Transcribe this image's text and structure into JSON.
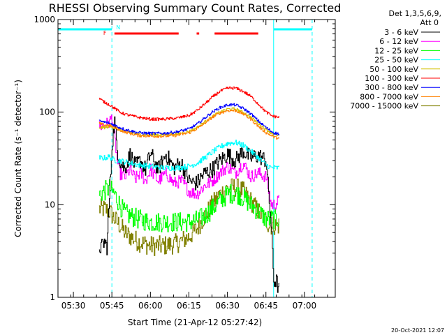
{
  "chart_data": {
    "type": "line",
    "title": "RHESSI Observing Summary Count Rates, Corrected",
    "xlabel": "Start Time (21-Apr-12 05:27:42)",
    "ylabel": "Corrected Count Rate (s⁻¹ detector⁻¹)",
    "yscale": "log",
    "xlim": [
      "05:24",
      "07:12"
    ],
    "ylim": [
      1,
      1000
    ],
    "x_ticks": [
      "05:30",
      "05:45",
      "06:00",
      "06:15",
      "06:30",
      "06:45",
      "07:00"
    ],
    "y_ticks": [
      "1",
      "10",
      "100",
      "1000"
    ],
    "legend_header": [
      "Det 1,3,5,6,9,",
      "Att 0"
    ],
    "legend_position": "right",
    "grid": false,
    "timestamp": "20-Oct-2021 12:07",
    "series": [
      {
        "name": "3 - 6 keV",
        "color": "#000000",
        "x": [
          "05:40",
          "05:41",
          "05:42",
          "05:43",
          "05:44",
          "05:45",
          "05:46",
          "05:47",
          "05:48",
          "05:50",
          "05:52",
          "05:54",
          "05:56",
          "05:58",
          "06:00",
          "06:03",
          "06:06",
          "06:09",
          "06:12",
          "06:15",
          "06:18",
          "06:21",
          "06:24",
          "06:27",
          "06:30",
          "06:33",
          "06:36",
          "06:39",
          "06:42",
          "06:45",
          "06:47",
          "06:48",
          "06:49",
          "06:50"
        ],
        "y": [
          3.5,
          3.5,
          4,
          3.5,
          12,
          45,
          80,
          40,
          30,
          24,
          35,
          26,
          30,
          24,
          36,
          24,
          35,
          25,
          28,
          18,
          17,
          22,
          24,
          30,
          35,
          30,
          38,
          32,
          34,
          30,
          6,
          1.5,
          1.5,
          1.2
        ]
      },
      {
        "name": "6 - 12 keV",
        "color": "#ff00ff",
        "x": [
          "05:40",
          "05:42",
          "05:44",
          "05:45",
          "05:46",
          "05:47",
          "05:48",
          "05:50",
          "05:52",
          "05:54",
          "05:56",
          "05:58",
          "06:00",
          "06:03",
          "06:06",
          "06:09",
          "06:12",
          "06:15",
          "06:18",
          "06:21",
          "06:24",
          "06:27",
          "06:30",
          "06:33",
          "06:36",
          "06:39",
          "06:42",
          "06:45",
          "06:47",
          "06:48",
          "06:50"
        ],
        "y": [
          70,
          72,
          78,
          90,
          55,
          30,
          22,
          20,
          24,
          19,
          22,
          18,
          24,
          18,
          22,
          17,
          18,
          14,
          13,
          16,
          18,
          22,
          26,
          22,
          28,
          20,
          22,
          20,
          10,
          10,
          11
        ]
      },
      {
        "name": "12 - 25 keV",
        "color": "#00ff00",
        "x": [
          "05:40",
          "05:42",
          "05:44",
          "05:46",
          "05:48",
          "05:50",
          "05:55",
          "06:00",
          "06:05",
          "06:10",
          "06:15",
          "06:18",
          "06:21",
          "06:24",
          "06:27",
          "06:30",
          "06:33",
          "06:36",
          "06:39",
          "06:42",
          "06:45",
          "06:47",
          "06:48",
          "06:50"
        ],
        "y": [
          13,
          14,
          15,
          13,
          10,
          8,
          7,
          6.5,
          6.5,
          6.5,
          6.5,
          6.8,
          7.5,
          9,
          11,
          13,
          13.5,
          12,
          10,
          8.5,
          7,
          7,
          7,
          7
        ]
      },
      {
        "name": "25 - 50 keV",
        "color": "#00ffff",
        "x": [
          "05:40",
          "05:42",
          "05:44",
          "05:46",
          "05:48",
          "05:50",
          "05:55",
          "06:00",
          "06:05",
          "06:10",
          "06:15",
          "06:18",
          "06:21",
          "06:24",
          "06:27",
          "06:30",
          "06:33",
          "06:36",
          "06:39",
          "06:42",
          "06:45",
          "06:47",
          "06:48",
          "06:50"
        ],
        "y": [
          32,
          32,
          33,
          30,
          30,
          29,
          27,
          26,
          25,
          25,
          26,
          28,
          32,
          37,
          42,
          46,
          47,
          44,
          38,
          32,
          27,
          25,
          25,
          25
        ]
      },
      {
        "name": "50 - 100 keV",
        "color": "#d4c000",
        "x": [
          "05:40",
          "05:42",
          "05:44",
          "05:46",
          "05:48",
          "05:50",
          "05:55",
          "06:00",
          "06:05",
          "06:10",
          "06:15",
          "06:18",
          "06:21",
          "06:24",
          "06:27",
          "06:30",
          "06:33",
          "06:36",
          "06:39",
          "06:42",
          "06:45",
          "06:47",
          "06:48",
          "06:50"
        ],
        "y": [
          68,
          68,
          70,
          68,
          65,
          62,
          58,
          57,
          57,
          58,
          62,
          68,
          78,
          90,
          100,
          108,
          108,
          100,
          88,
          75,
          65,
          60,
          58,
          56
        ]
      },
      {
        "name": "100 - 300 keV",
        "color": "#ff0000",
        "x": [
          "05:40",
          "05:42",
          "05:44",
          "05:46",
          "05:48",
          "05:50",
          "05:55",
          "06:00",
          "06:05",
          "06:10",
          "06:15",
          "06:18",
          "06:21",
          "06:24",
          "06:27",
          "06:30",
          "06:33",
          "06:36",
          "06:39",
          "06:42",
          "06:45",
          "06:47",
          "06:48",
          "06:50"
        ],
        "y": [
          140,
          128,
          120,
          110,
          100,
          95,
          88,
          84,
          84,
          86,
          92,
          104,
          122,
          145,
          168,
          182,
          182,
          168,
          148,
          122,
          100,
          92,
          90,
          88
        ]
      },
      {
        "name": "300 - 800 keV",
        "color": "#0000ff",
        "x": [
          "05:40",
          "05:42",
          "05:44",
          "05:46",
          "05:48",
          "05:50",
          "05:55",
          "06:00",
          "06:05",
          "06:10",
          "06:15",
          "06:18",
          "06:21",
          "06:24",
          "06:27",
          "06:30",
          "06:33",
          "06:36",
          "06:39",
          "06:42",
          "06:45",
          "06:47",
          "06:48",
          "06:50"
        ],
        "y": [
          80,
          78,
          76,
          72,
          68,
          65,
          60,
          59,
          59,
          61,
          66,
          74,
          86,
          100,
          112,
          120,
          120,
          110,
          96,
          80,
          68,
          62,
          60,
          58
        ]
      },
      {
        "name": "800 - 7000 keV",
        "color": "#ff8000",
        "x": [
          "05:40",
          "05:42",
          "05:44",
          "05:46",
          "05:48",
          "05:50",
          "05:55",
          "06:00",
          "06:05",
          "06:10",
          "06:15",
          "06:18",
          "06:21",
          "06:24",
          "06:27",
          "06:30",
          "06:33",
          "06:36",
          "06:39",
          "06:42",
          "06:45",
          "06:47",
          "06:48",
          "06:50"
        ],
        "y": [
          75,
          73,
          72,
          68,
          64,
          61,
          56,
          55,
          55,
          56,
          60,
          66,
          76,
          88,
          98,
          104,
          104,
          96,
          84,
          70,
          60,
          56,
          54,
          52
        ]
      },
      {
        "name": "7000 - 15000 keV",
        "color": "#808000",
        "x": [
          "05:40",
          "05:42",
          "05:44",
          "05:46",
          "05:48",
          "05:50",
          "05:55",
          "06:00",
          "06:05",
          "06:10",
          "06:15",
          "06:18",
          "06:21",
          "06:24",
          "06:27",
          "06:30",
          "06:33",
          "06:36",
          "06:39",
          "06:42",
          "06:45",
          "06:47",
          "06:48",
          "06:50"
        ],
        "y": [
          9,
          9,
          8.5,
          7,
          6,
          5,
          4,
          3.6,
          3.6,
          3.8,
          4.5,
          5.5,
          7.5,
          10,
          13,
          15,
          15.5,
          14,
          11,
          8.5,
          6.5,
          6,
          6,
          6
        ]
      }
    ],
    "annotations": {
      "flag_letters": {
        "F": "F",
        "N": "N"
      },
      "night_markers": [
        "05:24",
        "05:45",
        "06:48",
        "07:03"
      ],
      "saa_color": "#00ffff",
      "flare_color": "#ff0000",
      "flare_bars": [
        [
          "05:46",
          "06:11"
        ],
        [
          "06:18",
          "06:19"
        ],
        [
          "06:25",
          "06:42"
        ]
      ]
    }
  }
}
